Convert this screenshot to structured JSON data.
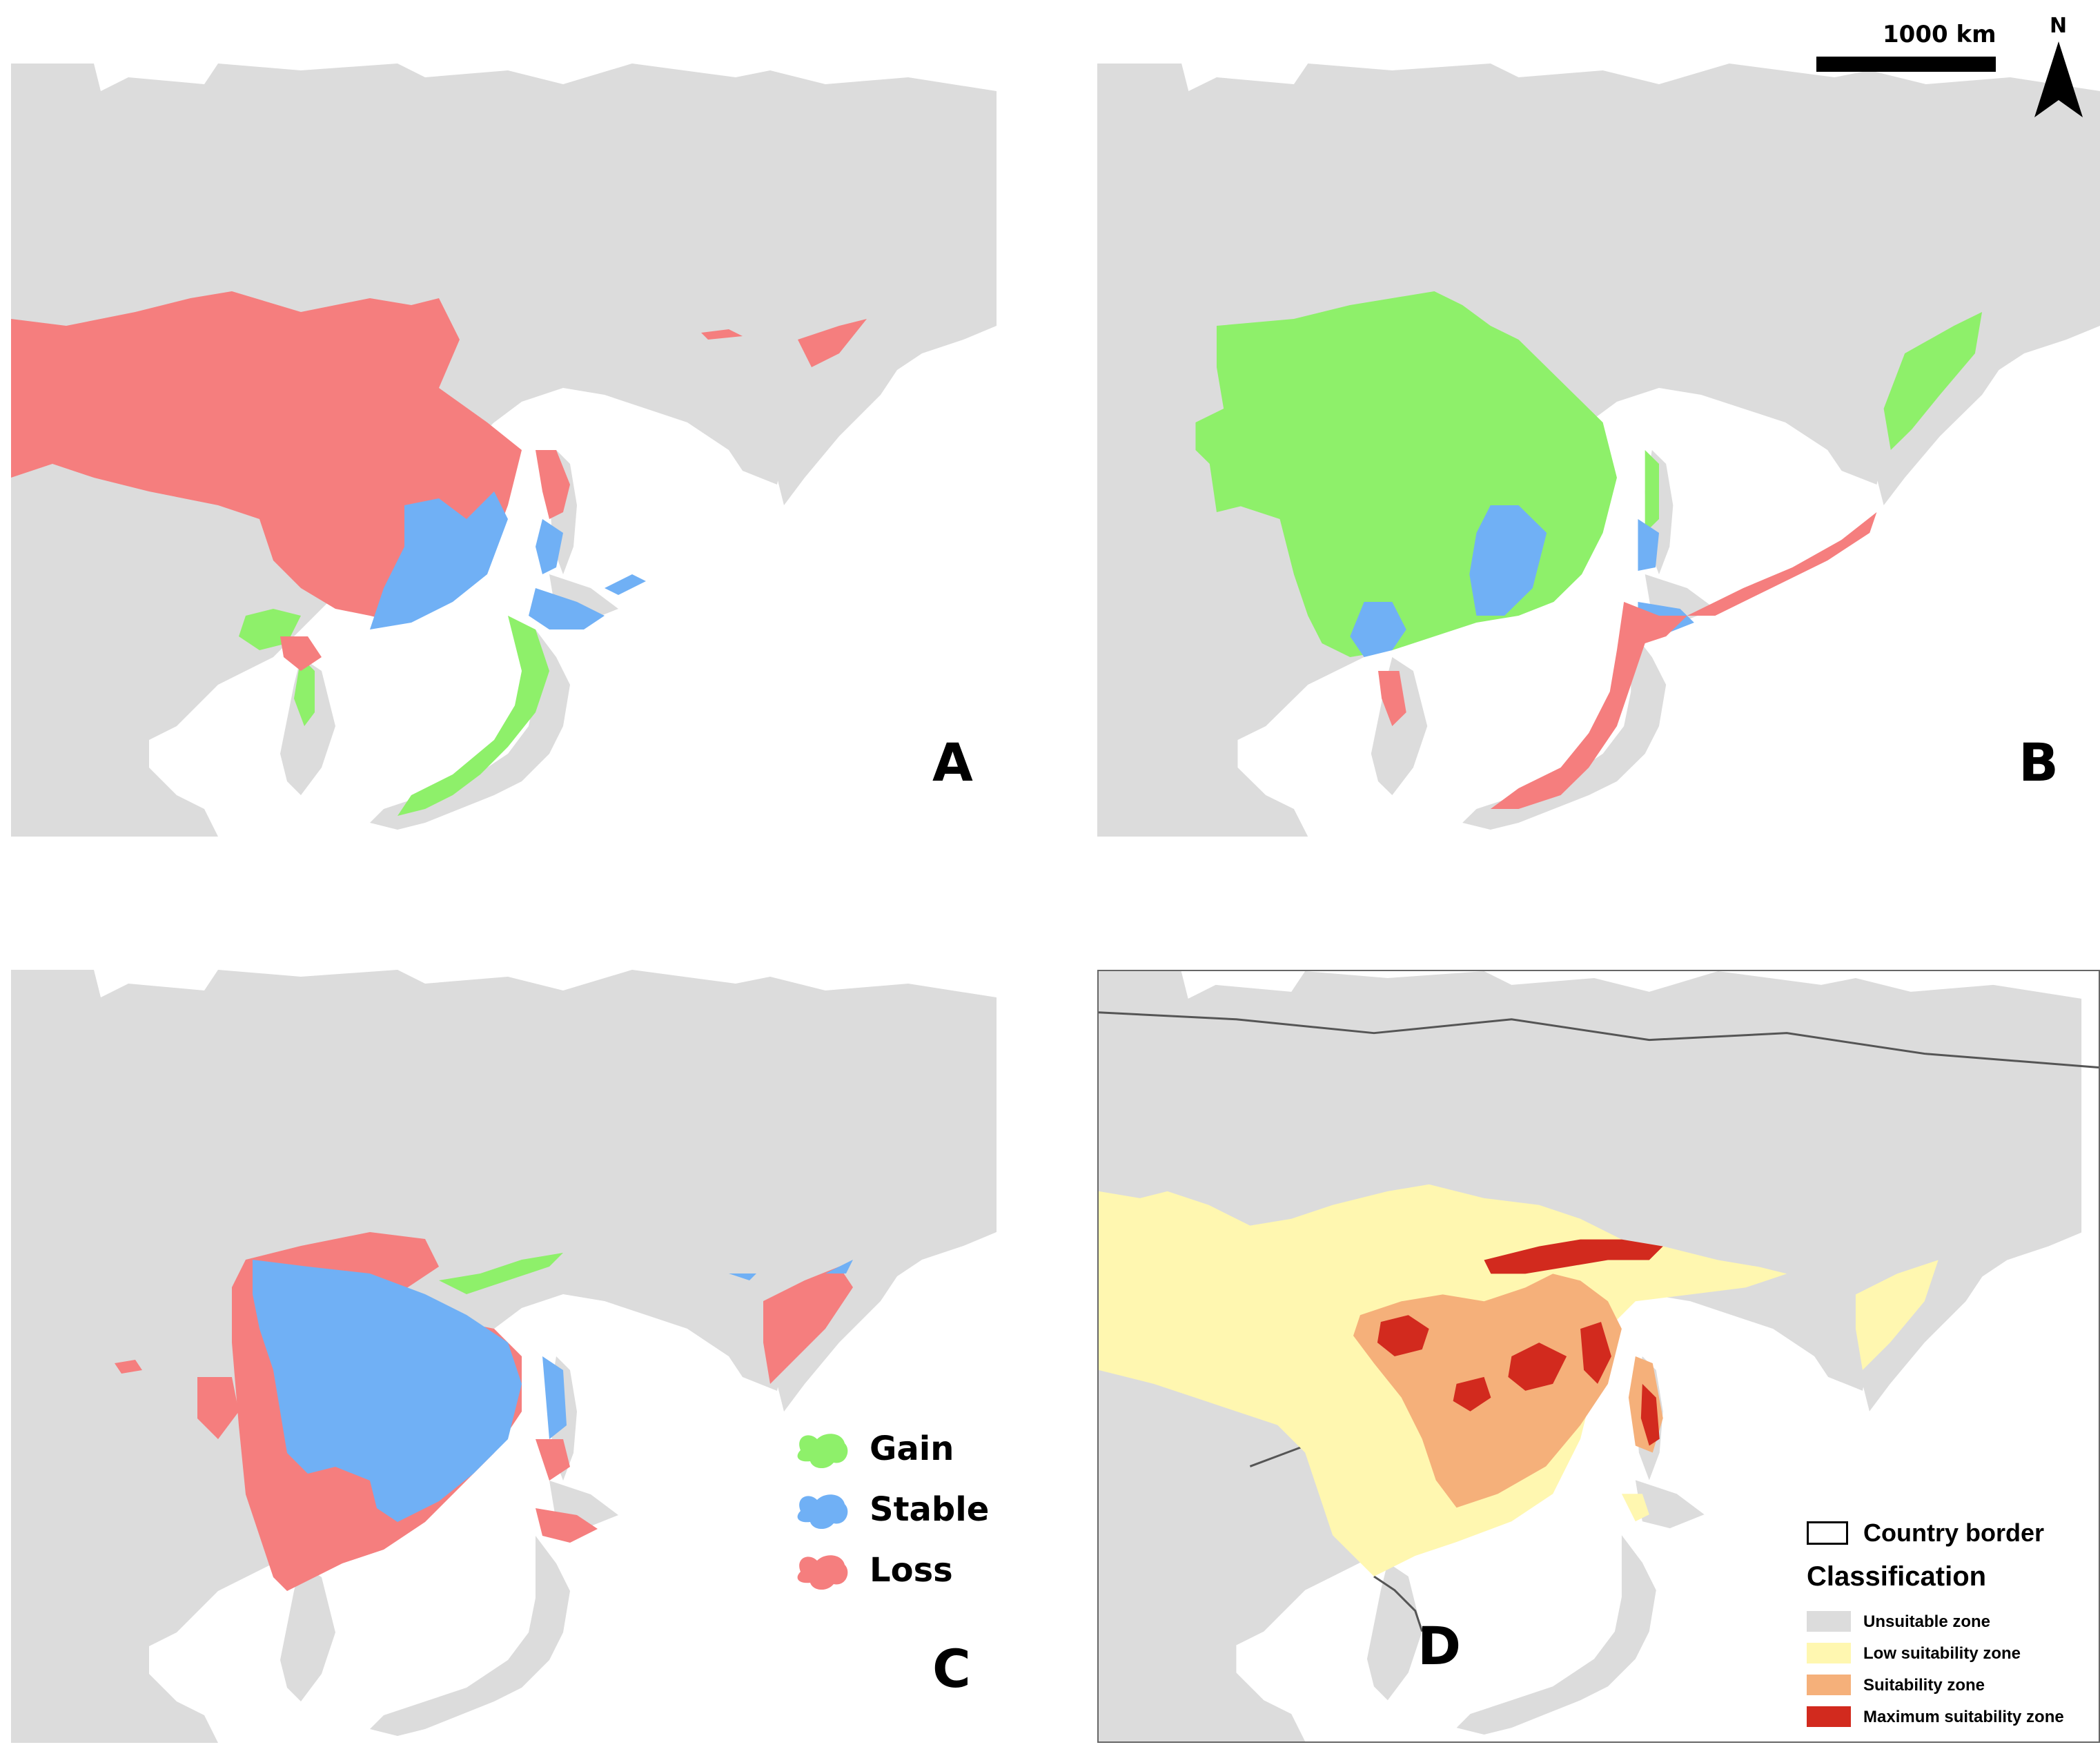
{
  "colors": {
    "land": "#dcdcdc",
    "sea": "#ffffff",
    "gain": "#8ef06a",
    "stable": "#70b0f5",
    "loss": "#f57e7e",
    "unsuitable": "#dcdcdc",
    "low_suitability": "#fff7b0",
    "suitability": "#f5b07a",
    "maximum_suitability": "#d22a1e"
  },
  "panels": {
    "a": {
      "letter": "A"
    },
    "b": {
      "letter": "B"
    },
    "c": {
      "letter": "C"
    },
    "d": {
      "letter": "D"
    }
  },
  "scale_bar": {
    "label": "1000  km"
  },
  "north_arrow": {
    "label": "N"
  },
  "change_legend": {
    "items": [
      {
        "label": "Gain",
        "color": "#8ef06a"
      },
      {
        "label": "Stable",
        "color": "#70b0f5"
      },
      {
        "label": "Loss",
        "color": "#f57e7e"
      }
    ]
  },
  "classification_legend": {
    "border_label": "Country border",
    "title": "Classification",
    "items": [
      {
        "label": "Unsuitable zone",
        "color": "#dcdcdc"
      },
      {
        "label": "Low suitability zone",
        "color": "#fff7b0"
      },
      {
        "label": "Suitability zone",
        "color": "#f5b07a"
      },
      {
        "label": "Maximum suitability zone",
        "color": "#d22a1e"
      }
    ]
  }
}
